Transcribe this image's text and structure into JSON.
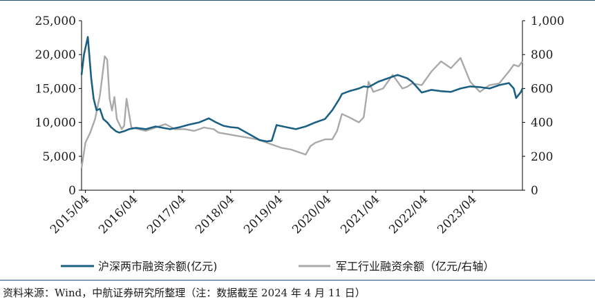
{
  "chart_data": {
    "type": "line",
    "x_labels": [
      "2015/04",
      "2016/04",
      "2017/04",
      "2018/04",
      "2019/04",
      "2020/04",
      "2021/04",
      "2022/04",
      "2023/04"
    ],
    "y_left": {
      "min": 0,
      "max": 25000,
      "ticks": [
        "0",
        "5,000",
        "10,000",
        "15,000",
        "20,000",
        "25,000"
      ],
      "tick_values": [
        0,
        5000,
        10000,
        15000,
        20000,
        25000
      ]
    },
    "y_right": {
      "min": 0,
      "max": 1000,
      "ticks": [
        "0",
        "200",
        "400",
        "600",
        "800",
        "1,000"
      ],
      "tick_values": [
        0,
        200,
        400,
        600,
        800,
        1000
      ]
    },
    "legend_position": "bottom",
    "series": [
      {
        "name": "沪深两市融资余额(亿元)",
        "axis": "left",
        "color": "#1b5f83",
        "x": [
          2015.17,
          2015.22,
          2015.3,
          2015.37,
          2015.42,
          2015.48,
          2015.55,
          2015.62,
          2015.7,
          2015.78,
          2015.88,
          2015.95,
          2016.05,
          2016.15,
          2016.3,
          2016.5,
          2016.7,
          2016.85,
          2017.0,
          2017.2,
          2017.4,
          2017.6,
          2017.8,
          2017.95,
          2018.1,
          2018.25,
          2018.4,
          2018.55,
          2018.7,
          2018.85,
          2019.0,
          2019.1,
          2019.2,
          2019.4,
          2019.6,
          2019.8,
          2020.0,
          2020.2,
          2020.35,
          2020.5,
          2020.55,
          2020.7,
          2020.9,
          2021.0,
          2021.1,
          2021.3,
          2021.5,
          2021.7,
          2021.9,
          2022.0,
          2022.1,
          2022.2,
          2022.4,
          2022.6,
          2022.8,
          2023.0,
          2023.2,
          2023.4,
          2023.6,
          2023.8,
          2024.0,
          2024.1,
          2024.15,
          2024.25,
          2024.28
        ],
        "values": [
          17000,
          20000,
          22600,
          16500,
          13500,
          11800,
          12000,
          10500,
          10000,
          9300,
          8700,
          8500,
          8700,
          9000,
          9200,
          9000,
          9400,
          9200,
          9000,
          9300,
          9700,
          10000,
          10600,
          10000,
          9500,
          9300,
          9200,
          8600,
          8000,
          7400,
          7200,
          7300,
          9600,
          9300,
          9000,
          9400,
          10000,
          10500,
          11800,
          13500,
          14200,
          14600,
          15000,
          15300,
          15200,
          16000,
          16500,
          17000,
          16500,
          16000,
          15200,
          14400,
          14800,
          14600,
          14500,
          15000,
          15300,
          15200,
          15000,
          15500,
          15800,
          15000,
          13600,
          14500,
          15000
        ]
      },
      {
        "name": "军工行业融资余额（亿元/右轴）",
        "axis": "right",
        "color": "#a9a9a9",
        "x": [
          2015.17,
          2015.25,
          2015.35,
          2015.45,
          2015.55,
          2015.65,
          2015.7,
          2015.75,
          2015.8,
          2015.85,
          2015.9,
          2016.0,
          2016.05,
          2016.1,
          2016.2,
          2016.35,
          2016.5,
          2016.7,
          2016.9,
          2017.1,
          2017.3,
          2017.5,
          2017.7,
          2017.9,
          2018.0,
          2018.2,
          2018.4,
          2018.6,
          2018.8,
          2019.0,
          2019.1,
          2019.3,
          2019.5,
          2019.7,
          2019.8,
          2019.9,
          2020.0,
          2020.2,
          2020.35,
          2020.45,
          2020.55,
          2020.7,
          2020.9,
          2021.0,
          2021.1,
          2021.2,
          2021.4,
          2021.6,
          2021.8,
          2021.9,
          2022.0,
          2022.2,
          2022.4,
          2022.6,
          2022.8,
          2023.0,
          2023.2,
          2023.4,
          2023.6,
          2023.8,
          2024.0,
          2024.1,
          2024.2,
          2024.28
        ],
        "values": [
          130,
          280,
          340,
          420,
          560,
          790,
          770,
          540,
          470,
          550,
          420,
          360,
          380,
          540,
          370,
          360,
          350,
          370,
          390,
          360,
          360,
          350,
          370,
          360,
          340,
          330,
          320,
          310,
          300,
          280,
          270,
          250,
          240,
          220,
          210,
          260,
          280,
          300,
          300,
          350,
          450,
          430,
          400,
          430,
          640,
          580,
          600,
          680,
          600,
          610,
          630,
          620,
          700,
          760,
          720,
          780,
          640,
          580,
          620,
          630,
          700,
          740,
          730,
          760
        ]
      }
    ]
  },
  "legend": {
    "series1": "沪深两市融资余额(亿元)",
    "series2": "军工行业融资余额（亿元/右轴）"
  },
  "source": {
    "prefix": "资料来源：",
    "wind": "Wind",
    "middle": "，中航证券研究所整理（注：数据截至",
    "year": "2024",
    "nian": "年",
    "month": "4",
    "yue": "月",
    "day": "11",
    "ri": "日）"
  },
  "colors": {
    "frame": "#1f4e79",
    "axis": "#000000"
  }
}
